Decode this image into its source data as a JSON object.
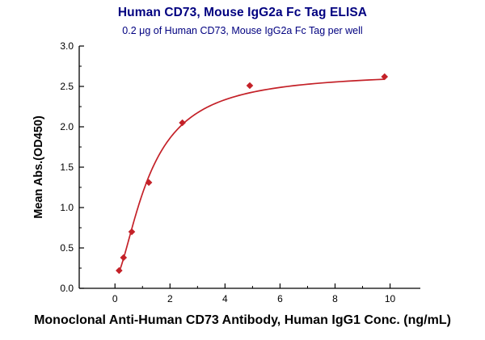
{
  "chart_data": {
    "type": "scatter",
    "title": "Human CD73, Mouse IgG2a Fc Tag ELISA",
    "subtitle": "0.2 μg of Human CD73, Mouse IgG2a Fc Tag per well",
    "xlabel": "Monoclonal Anti-Human CD73 Antibody, Human IgG1 Conc. (ng/mL)",
    "ylabel": "Mean Abs.(OD450)",
    "x": [
      0.15,
      0.31,
      0.61,
      1.23,
      2.45,
      4.9,
      9.8
    ],
    "y": [
      0.22,
      0.38,
      0.7,
      1.31,
      2.05,
      2.51,
      2.62
    ],
    "xlim": [
      -1.3,
      11.1
    ],
    "ylim": [
      0,
      3
    ],
    "xticks": [
      0,
      2,
      4,
      6,
      8,
      10
    ],
    "xminor": [
      1,
      3,
      5,
      7,
      9
    ],
    "yticks": [
      0,
      0.5,
      1,
      1.5,
      2,
      2.5,
      3
    ],
    "yminor": [
      0.25,
      0.75,
      1.25,
      1.75,
      2.25,
      2.75
    ],
    "marker": "diamond",
    "series_color": "#c42128",
    "title_color": "#000080",
    "axis_color": "#000000",
    "fit": {
      "model": "4PL",
      "bottom": 0.12,
      "top": 2.68,
      "ec50": 1.25,
      "hill": 1.6
    },
    "legend": "none",
    "grid": false
  }
}
